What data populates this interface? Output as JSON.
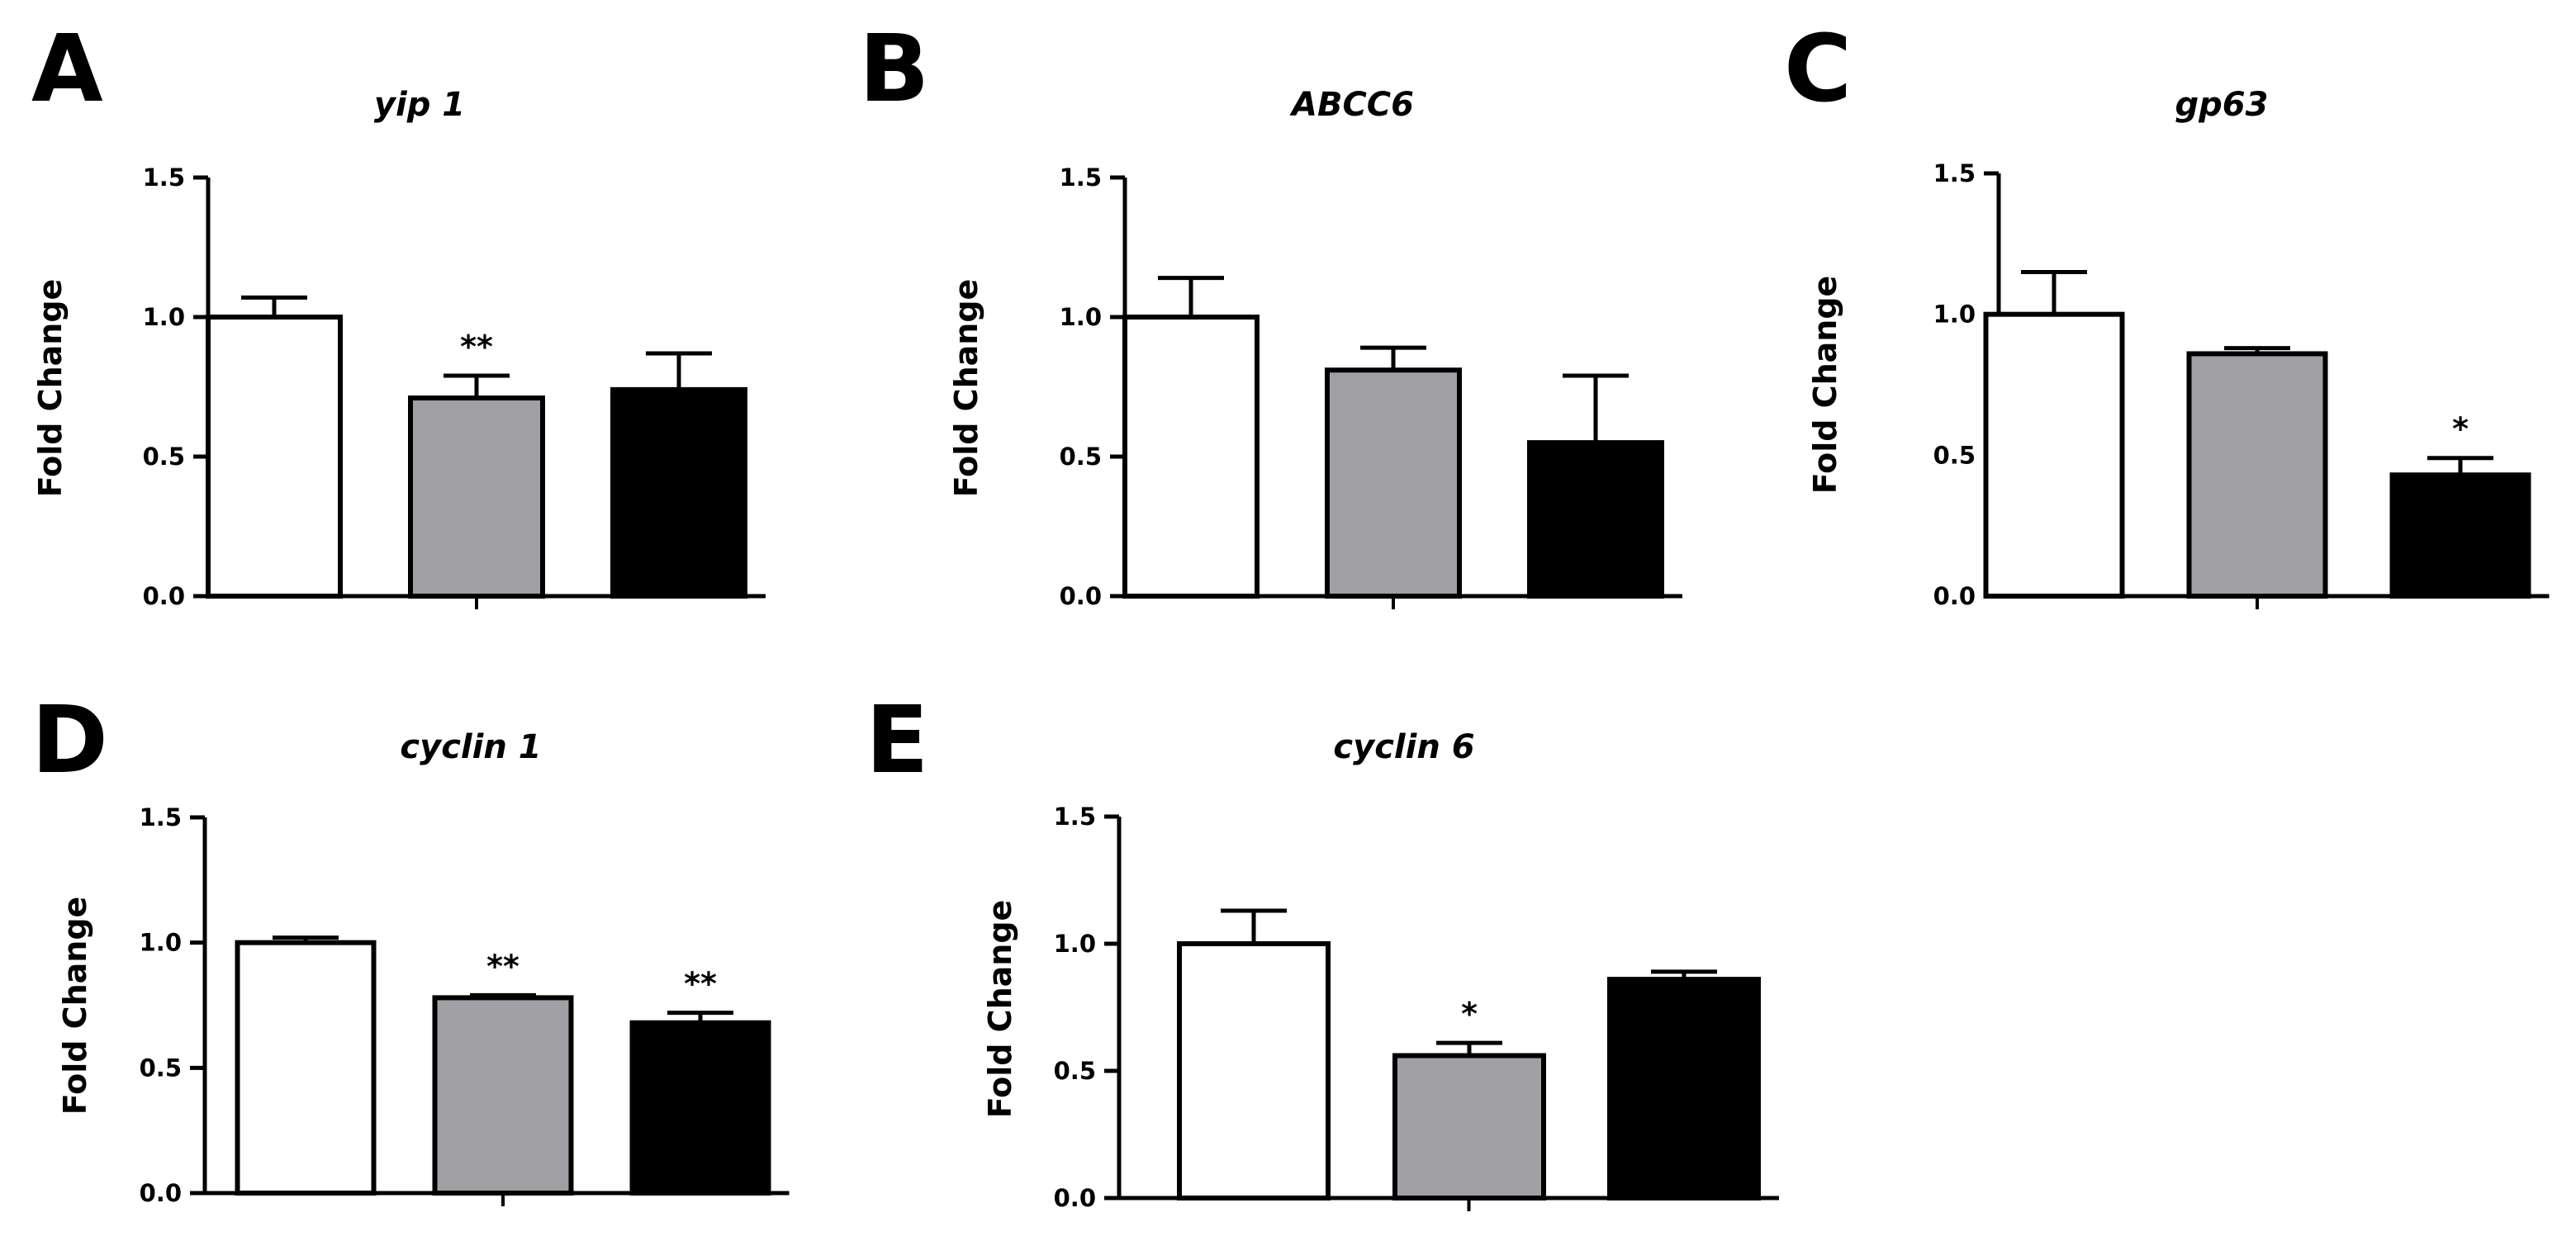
{
  "chart_data": [
    {
      "panel": "A",
      "type": "bar",
      "title": "yip 1",
      "ylabel": "Fold Change",
      "ylim": [
        0,
        1.5
      ],
      "yticks": [
        "0.0",
        "0.5",
        "1.0",
        "1.5"
      ],
      "colors": [
        "#ffffff",
        "#a0a0a4",
        "#000000"
      ],
      "values": [
        1.0,
        0.71,
        0.74
      ],
      "errors": [
        0.07,
        0.08,
        0.13
      ],
      "significance": [
        "",
        "**",
        ""
      ]
    },
    {
      "panel": "B",
      "type": "bar",
      "title": "ABCC6",
      "ylabel": "Fold Change",
      "ylim": [
        0,
        1.5
      ],
      "yticks": [
        "0.0",
        "0.5",
        "1.0",
        "1.5"
      ],
      "colors": [
        "#ffffff",
        "#a0a0a4",
        "#000000"
      ],
      "values": [
        1.0,
        0.81,
        0.55
      ],
      "errors": [
        0.14,
        0.08,
        0.24
      ],
      "significance": [
        "",
        "",
        ""
      ]
    },
    {
      "panel": "C",
      "type": "bar",
      "title": "gp63",
      "ylabel": "Fold Change",
      "ylim": [
        0,
        1.5
      ],
      "yticks": [
        "0.0",
        "0.5",
        "1.0",
        "1.5"
      ],
      "colors": [
        "#ffffff",
        "#a0a0a4",
        "#000000"
      ],
      "values": [
        1.0,
        0.86,
        0.43
      ],
      "errors": [
        0.15,
        0.02,
        0.06
      ],
      "significance": [
        "",
        "",
        "*"
      ]
    },
    {
      "panel": "D",
      "type": "bar",
      "title": "cyclin 1",
      "ylabel": "Fold Change",
      "ylim": [
        0,
        1.5
      ],
      "yticks": [
        "0.0",
        "0.5",
        "1.0",
        "1.5"
      ],
      "colors": [
        "#ffffff",
        "#a0a0a4",
        "#000000"
      ],
      "values": [
        1.0,
        0.78,
        0.68
      ],
      "errors": [
        0.02,
        0.01,
        0.04
      ],
      "significance": [
        "",
        "**",
        "**"
      ]
    },
    {
      "panel": "E",
      "type": "bar",
      "title": "cyclin 6",
      "ylabel": "Fold Change",
      "ylim": [
        0,
        1.5
      ],
      "yticks": [
        "0.0",
        "0.5",
        "1.0",
        "1.5"
      ],
      "colors": [
        "#ffffff",
        "#a0a0a4",
        "#000000"
      ],
      "values": [
        1.0,
        0.56,
        0.86
      ],
      "errors": [
        0.13,
        0.05,
        0.03
      ],
      "significance": [
        "",
        "*",
        ""
      ]
    }
  ]
}
